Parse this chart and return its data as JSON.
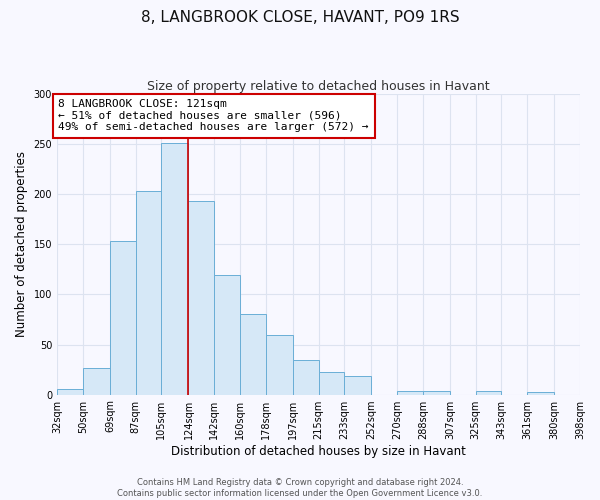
{
  "title": "8, LANGBROOK CLOSE, HAVANT, PO9 1RS",
  "subtitle": "Size of property relative to detached houses in Havant",
  "xlabel": "Distribution of detached houses by size in Havant",
  "ylabel": "Number of detached properties",
  "bar_left_edges": [
    32,
    50,
    69,
    87,
    105,
    124,
    142,
    160,
    178,
    197,
    215,
    233,
    252,
    270,
    288,
    307,
    325,
    343,
    361,
    380
  ],
  "bar_heights": [
    6,
    27,
    153,
    203,
    251,
    193,
    119,
    80,
    60,
    35,
    23,
    19,
    0,
    4,
    4,
    0,
    4,
    0,
    3,
    0
  ],
  "bar_widths": [
    18,
    19,
    18,
    18,
    19,
    18,
    18,
    18,
    19,
    18,
    18,
    19,
    18,
    18,
    19,
    18,
    18,
    18,
    19,
    18
  ],
  "bar_facecolor": "#d6e8f7",
  "bar_edgecolor": "#6aaed6",
  "vline_x": 124,
  "vline_color": "#cc0000",
  "annotation_title": "8 LANGBROOK CLOSE: 121sqm",
  "annotation_line1": "← 51% of detached houses are smaller (596)",
  "annotation_line2": "49% of semi-detached houses are larger (572) →",
  "xlim": [
    32,
    398
  ],
  "ylim": [
    0,
    300
  ],
  "yticks": [
    0,
    50,
    100,
    150,
    200,
    250,
    300
  ],
  "xtick_labels": [
    "32sqm",
    "50sqm",
    "69sqm",
    "87sqm",
    "105sqm",
    "124sqm",
    "142sqm",
    "160sqm",
    "178sqm",
    "197sqm",
    "215sqm",
    "233sqm",
    "252sqm",
    "270sqm",
    "288sqm",
    "307sqm",
    "325sqm",
    "343sqm",
    "361sqm",
    "380sqm",
    "398sqm"
  ],
  "xtick_positions": [
    32,
    50,
    69,
    87,
    105,
    124,
    142,
    160,
    178,
    197,
    215,
    233,
    252,
    270,
    288,
    307,
    325,
    343,
    361,
    380,
    398
  ],
  "footer_line1": "Contains HM Land Registry data © Crown copyright and database right 2024.",
  "footer_line2": "Contains public sector information licensed under the Open Government Licence v3.0.",
  "bg_color": "#f8f8ff",
  "plot_bg_color": "#f8f8ff",
  "grid_color": "#dde3f0",
  "title_fontsize": 11,
  "subtitle_fontsize": 9,
  "axis_label_fontsize": 8.5,
  "tick_fontsize": 7,
  "footer_fontsize": 6,
  "annotation_fontsize": 8
}
